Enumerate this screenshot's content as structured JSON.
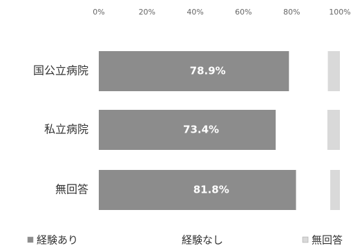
{
  "chart_data": {
    "type": "stacked-bar-horizontal",
    "categories": [
      "国公立病院",
      "私立病院",
      "無回答"
    ],
    "series": [
      {
        "name": "経験あり",
        "color": "#8c8c8c",
        "values": [
          78.9,
          73.4,
          81.8
        ],
        "value_labels": [
          "78.9%",
          "73.4%",
          "81.8%"
        ]
      },
      {
        "name": "経験なし",
        "color": "#ffffff",
        "values": [
          16.1,
          21.4,
          14.2
        ]
      },
      {
        "name": "無回答",
        "color": "#d9d9d9",
        "values": [
          5.0,
          5.2,
          4.0
        ]
      }
    ],
    "xlim": [
      0,
      100
    ],
    "xticks": [
      {
        "value": 0,
        "label": "0%"
      },
      {
        "value": 20,
        "label": "20%"
      },
      {
        "value": 40,
        "label": "40%"
      },
      {
        "value": 60,
        "label": "60%"
      },
      {
        "value": 80,
        "label": "80%"
      },
      {
        "value": 100,
        "label": "100%"
      }
    ]
  }
}
